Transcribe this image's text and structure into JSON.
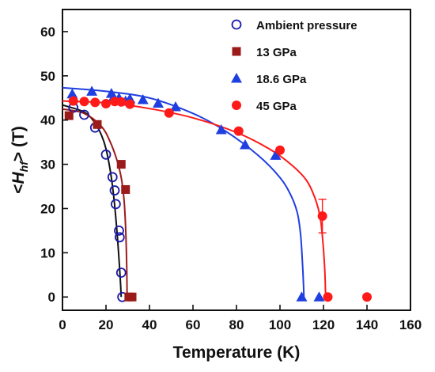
{
  "chart_data": {
    "type": "scatter",
    "xlabel": "Temperature (K)",
    "ylabel": {
      "prefix": "<",
      "symbol": "H",
      "subscript": "hf",
      "suffix": "> (T)"
    },
    "xlim": [
      0,
      160
    ],
    "ylim": [
      -3,
      65
    ],
    "x_ticks": [
      0,
      20,
      40,
      60,
      80,
      100,
      120,
      140,
      160
    ],
    "y_ticks": [
      0,
      10,
      20,
      30,
      40,
      50,
      60
    ],
    "grid": false,
    "legend_position": "top-right",
    "series": [
      {
        "name": "Ambient pressure",
        "marker": "open-circle",
        "color": "#1a1aa8",
        "points": [
          [
            5,
            42.8
          ],
          [
            10,
            41.2
          ],
          [
            15,
            38.3
          ],
          [
            20,
            32.2
          ],
          [
            23,
            27.1
          ],
          [
            24,
            24.1
          ],
          [
            24.5,
            21.0
          ],
          [
            26,
            15.0
          ],
          [
            26.3,
            13.5
          ],
          [
            27,
            5.5
          ],
          [
            27.5,
            0
          ]
        ],
        "fit": [
          [
            0,
            43.4
          ],
          [
            10,
            41.8
          ],
          [
            15,
            39.3
          ],
          [
            18,
            36.5
          ],
          [
            20,
            33.5
          ],
          [
            22,
            28.5
          ],
          [
            23.5,
            23
          ],
          [
            24.5,
            18
          ],
          [
            25.5,
            12
          ],
          [
            26.2,
            7
          ],
          [
            26.7,
            3
          ],
          [
            27,
            0
          ]
        ]
      },
      {
        "name": "13 GPa",
        "marker": "square",
        "color": "#9b1b1b",
        "points": [
          [
            3,
            41
          ],
          [
            16,
            39
          ],
          [
            27,
            30
          ],
          [
            29,
            24.3
          ],
          [
            30.5,
            0
          ],
          [
            32,
            0
          ]
        ],
        "fit": [
          [
            0,
            42.5
          ],
          [
            10,
            41.5
          ],
          [
            18,
            38.5
          ],
          [
            22,
            35
          ],
          [
            25,
            31
          ],
          [
            27,
            27
          ],
          [
            28.3,
            22
          ],
          [
            29,
            16
          ],
          [
            29.4,
            10
          ],
          [
            29.6,
            5
          ],
          [
            29.7,
            0
          ]
        ]
      },
      {
        "name": "18.6 GPa",
        "marker": "triangle",
        "color": "#1f3fe0",
        "points": [
          [
            4.5,
            45.9
          ],
          [
            13.5,
            46.5
          ],
          [
            22.5,
            46
          ],
          [
            23.5,
            45.2
          ],
          [
            26,
            45
          ],
          [
            29,
            44.3
          ],
          [
            31,
            44.8
          ],
          [
            37,
            44.6
          ],
          [
            44,
            43.8
          ],
          [
            52,
            43
          ],
          [
            73,
            37.8
          ],
          [
            84,
            34.4
          ],
          [
            98,
            32
          ],
          [
            110,
            0
          ],
          [
            118,
            0
          ]
        ],
        "fit": [
          [
            0,
            47.3
          ],
          [
            20,
            46.5
          ],
          [
            40,
            45
          ],
          [
            60,
            41.5
          ],
          [
            75,
            37.5
          ],
          [
            90,
            32
          ],
          [
            100,
            27
          ],
          [
            105,
            23
          ],
          [
            108,
            19
          ],
          [
            109.5,
            14
          ],
          [
            110.3,
            8
          ],
          [
            110.8,
            3
          ],
          [
            111,
            0
          ]
        ]
      },
      {
        "name": "45 GPa",
        "marker": "filled-circle",
        "color": "#ff1a1a",
        "points": [
          [
            5,
            44.3
          ],
          [
            10,
            44.2
          ],
          [
            15,
            44
          ],
          [
            20,
            43.7
          ],
          [
            24,
            44.2
          ],
          [
            27,
            44.1
          ],
          [
            31,
            43.6
          ],
          [
            49,
            41.6
          ],
          [
            81,
            37.5
          ],
          [
            100,
            33.2
          ],
          [
            119.5,
            18.3
          ],
          [
            122,
            0
          ],
          [
            140,
            0
          ]
        ],
        "fit": [
          [
            0,
            44.3
          ],
          [
            20,
            43.9
          ],
          [
            40,
            42.6
          ],
          [
            60,
            40.5
          ],
          [
            80,
            37.2
          ],
          [
            95,
            33.5
          ],
          [
            105,
            30
          ],
          [
            112,
            26.5
          ],
          [
            116,
            22.5
          ],
          [
            118.5,
            18
          ],
          [
            119.8,
            12
          ],
          [
            120.6,
            6
          ],
          [
            121,
            0
          ]
        ],
        "error_bars": [
          {
            "x": 119.5,
            "y": 18.3,
            "yerr": 3.8
          }
        ]
      }
    ]
  }
}
